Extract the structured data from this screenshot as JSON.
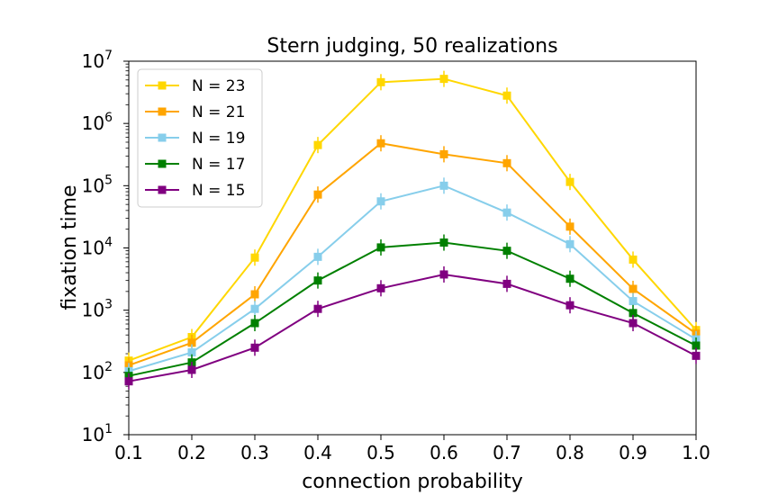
{
  "chart_data": {
    "type": "line",
    "title": "Stern judging, 50 realizations",
    "xlabel": "connection probability",
    "ylabel": "fixation time",
    "yscale": "log",
    "xlim": [
      0.1,
      1.0
    ],
    "ylim": [
      10,
      10000000
    ],
    "x": [
      0.1,
      0.2,
      0.3,
      0.4,
      0.5,
      0.6,
      0.7,
      0.8,
      0.9,
      1.0
    ],
    "x_tick_labels": [
      "0.1",
      "0.2",
      "0.3",
      "0.4",
      "0.5",
      "0.6",
      "0.7",
      "0.8",
      "0.9",
      "1.0"
    ],
    "y_ticks": [
      {
        "value": 10,
        "base": "10",
        "exp": "1"
      },
      {
        "value": 100,
        "base": "10",
        "exp": "2"
      },
      {
        "value": 1000,
        "base": "10",
        "exp": "3"
      },
      {
        "value": 10000,
        "base": "10",
        "exp": "4"
      },
      {
        "value": 100000,
        "base": "10",
        "exp": "5"
      },
      {
        "value": 1000000,
        "base": "10",
        "exp": "6"
      },
      {
        "value": 10000000,
        "base": "10",
        "exp": "7"
      }
    ],
    "legend_position": "top-left",
    "grid": false,
    "series": [
      {
        "name": "N = 23",
        "color": "#FFD700",
        "values": [
          155,
          370,
          7000,
          450000,
          4600000,
          5200000,
          2800000,
          115000,
          6500,
          480
        ]
      },
      {
        "name": "N = 21",
        "color": "#FFA500",
        "values": [
          130,
          300,
          1800,
          72000,
          480000,
          320000,
          230000,
          22000,
          2200,
          420
        ]
      },
      {
        "name": "N = 19",
        "color": "#87CEEB",
        "values": [
          105,
          210,
          1050,
          7200,
          56000,
          100000,
          37000,
          11500,
          1400,
          340
        ]
      },
      {
        "name": "N = 17",
        "color": "#008000",
        "values": [
          88,
          145,
          620,
          3000,
          10200,
          12200,
          9000,
          3200,
          900,
          270
        ]
      },
      {
        "name": "N = 15",
        "color": "#800080",
        "values": [
          72,
          110,
          250,
          1050,
          2250,
          3750,
          2650,
          1200,
          620,
          185
        ]
      }
    ]
  }
}
